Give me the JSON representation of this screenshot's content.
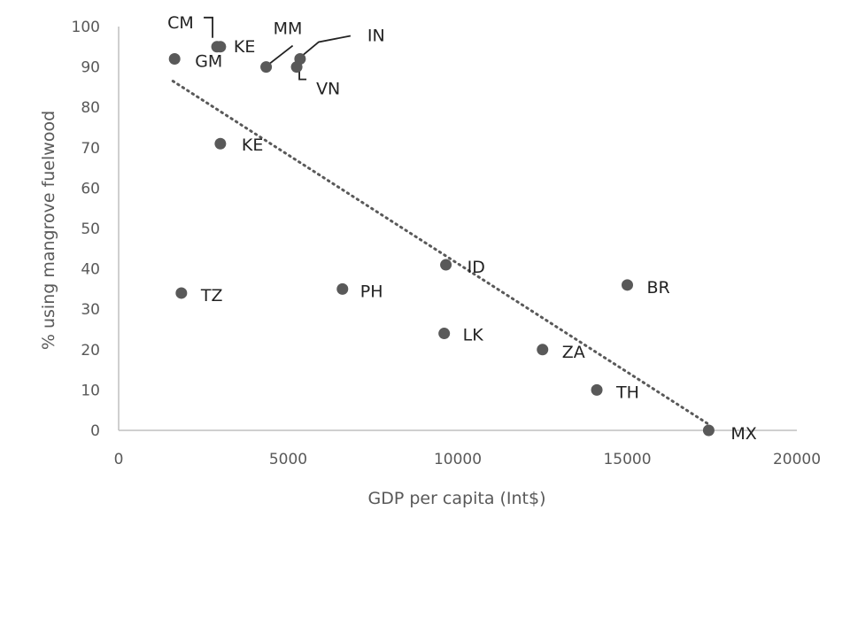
{
  "chart_data": {
    "type": "scatter",
    "title": "",
    "xlabel": "GDP per capita (Int$)",
    "ylabel": "% using mangrove fuelwood",
    "xlim": [
      0,
      20000
    ],
    "ylim": [
      0,
      100
    ],
    "xticks": [
      0,
      5000,
      10000,
      15000,
      20000
    ],
    "yticks": [
      0,
      10,
      20,
      30,
      40,
      50,
      60,
      70,
      80,
      90,
      100
    ],
    "grid": false,
    "legend": "none",
    "colors": {
      "marker": "#595959",
      "trendline": "#595959",
      "axis": "#bfbfbf",
      "text": "#595959"
    },
    "points": [
      {
        "label": "CM",
        "x": 2900,
        "y": 95
      },
      {
        "label": "KE",
        "x": 3000,
        "y": 95
      },
      {
        "label": "GM",
        "x": 1650,
        "y": 92
      },
      {
        "label": "MM",
        "x": 4350,
        "y": 90
      },
      {
        "label": "IN",
        "x": 5350,
        "y": 92
      },
      {
        "label": "VN",
        "x": 5250,
        "y": 90
      },
      {
        "label": "KE",
        "x": 3000,
        "y": 71
      },
      {
        "label": "ID",
        "x": 9650,
        "y": 41
      },
      {
        "label": "TZ",
        "x": 1850,
        "y": 34
      },
      {
        "label": "PH",
        "x": 6600,
        "y": 35
      },
      {
        "label": "BR",
        "x": 15000,
        "y": 36
      },
      {
        "label": "LK",
        "x": 9600,
        "y": 24
      },
      {
        "label": "ZA",
        "x": 12500,
        "y": 20
      },
      {
        "label": "TH",
        "x": 14100,
        "y": 10
      },
      {
        "label": "MX",
        "x": 17400,
        "y": 0
      }
    ],
    "trendline": {
      "style": "dotted",
      "x": [
        1600,
        17400
      ],
      "y": [
        86.5,
        1.5
      ]
    }
  }
}
